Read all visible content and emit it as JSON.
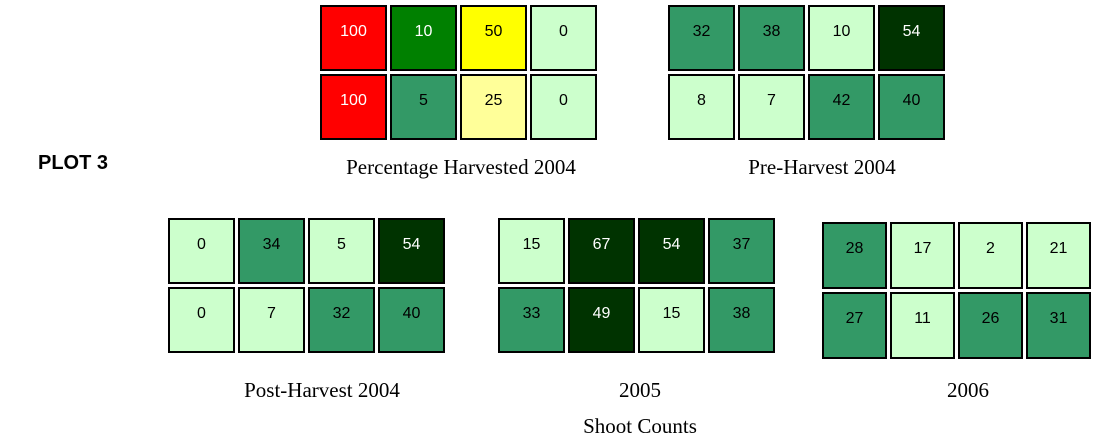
{
  "plot_label": "PLOT 3",
  "grids": [
    {
      "caption": "Percentage Harvested 2004",
      "rows": [
        [
          {
            "value": 100,
            "color": "#ff0000"
          },
          {
            "value": 10,
            "color": "#008000"
          },
          {
            "value": 50,
            "color": "#ffff00"
          },
          {
            "value": 0,
            "color": "#ccffcc"
          }
        ],
        [
          {
            "value": 100,
            "color": "#ff0000"
          },
          {
            "value": 5,
            "color": "#339966"
          },
          {
            "value": 25,
            "color": "#ffff99"
          },
          {
            "value": 0,
            "color": "#ccffcc"
          }
        ]
      ]
    },
    {
      "caption": "Pre-Harvest 2004",
      "rows": [
        [
          {
            "value": 32,
            "color": "#339966"
          },
          {
            "value": 38,
            "color": "#339966"
          },
          {
            "value": 10,
            "color": "#ccffcc"
          },
          {
            "value": 54,
            "color": "#003300"
          }
        ],
        [
          {
            "value": 8,
            "color": "#ccffcc"
          },
          {
            "value": 7,
            "color": "#ccffcc"
          },
          {
            "value": 42,
            "color": "#339966"
          },
          {
            "value": 40,
            "color": "#339966"
          }
        ]
      ]
    },
    {
      "caption": "Post-Harvest 2004",
      "rows": [
        [
          {
            "value": 0,
            "color": "#ccffcc"
          },
          {
            "value": 34,
            "color": "#339966"
          },
          {
            "value": 5,
            "color": "#ccffcc"
          },
          {
            "value": 54,
            "color": "#003300"
          }
        ],
        [
          {
            "value": 0,
            "color": "#ccffcc"
          },
          {
            "value": 7,
            "color": "#ccffcc"
          },
          {
            "value": 32,
            "color": "#339966"
          },
          {
            "value": 40,
            "color": "#339966"
          }
        ]
      ]
    },
    {
      "caption": "2005",
      "rows": [
        [
          {
            "value": 15,
            "color": "#ccffcc"
          },
          {
            "value": 67,
            "color": "#003300"
          },
          {
            "value": 54,
            "color": "#003300"
          },
          {
            "value": 37,
            "color": "#339966"
          }
        ],
        [
          {
            "value": 33,
            "color": "#339966"
          },
          {
            "value": 49,
            "color": "#003300"
          },
          {
            "value": 15,
            "color": "#ccffcc"
          },
          {
            "value": 38,
            "color": "#339966"
          }
        ]
      ]
    },
    {
      "caption": "2006",
      "rows": [
        [
          {
            "value": 28,
            "color": "#339966"
          },
          {
            "value": 17,
            "color": "#ccffcc"
          },
          {
            "value": 2,
            "color": "#ccffcc"
          },
          {
            "value": 21,
            "color": "#ccffcc"
          }
        ],
        [
          {
            "value": 27,
            "color": "#339966"
          },
          {
            "value": 11,
            "color": "#ccffcc"
          },
          {
            "value": 26,
            "color": "#339966"
          },
          {
            "value": 31,
            "color": "#339966"
          }
        ]
      ]
    }
  ],
  "group_caption": "Shoot Counts"
}
